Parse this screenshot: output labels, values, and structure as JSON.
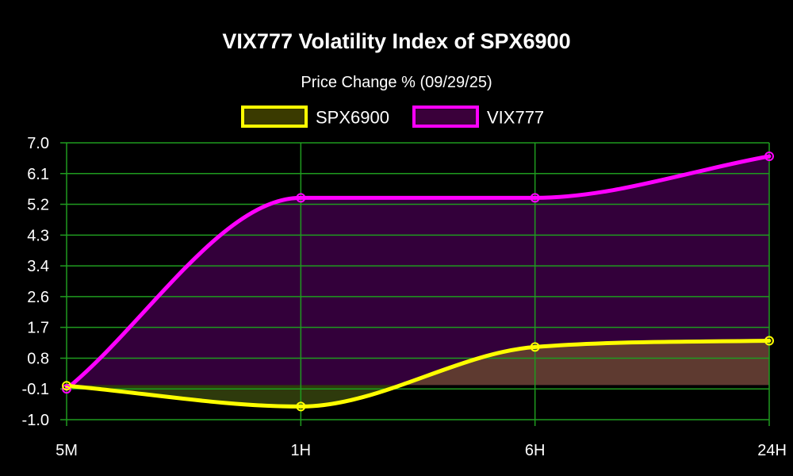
{
  "chart_data": {
    "type": "area",
    "title": "VIX777 Volatility Index of SPX6900",
    "subtitle": "Price Change % (09/29/25)",
    "categories": [
      "5M",
      "1H",
      "6H",
      "24H"
    ],
    "series": [
      {
        "name": "SPX6900",
        "values": [
          -0.02,
          -0.62,
          1.1,
          1.28
        ],
        "line_color": "#ffff00",
        "fill_color_positive": "#5e3a30",
        "fill_color_negative": "#2e3a0c"
      },
      {
        "name": "VIX777",
        "values": [
          -0.11,
          5.41,
          5.41,
          6.61
        ],
        "line_color": "#ff00ff",
        "fill_color": "#33003a"
      }
    ],
    "y_ticks": [
      "7.0",
      "6.1",
      "5.2",
      "4.3",
      "3.4",
      "2.6",
      "1.7",
      "0.8",
      "-0.1",
      "-1.0"
    ],
    "ylim": [
      -1.0,
      7.0
    ],
    "grid": true,
    "grid_color": "#1f9b1f",
    "legend_position": "top-center",
    "xlabel": "",
    "ylabel": ""
  }
}
